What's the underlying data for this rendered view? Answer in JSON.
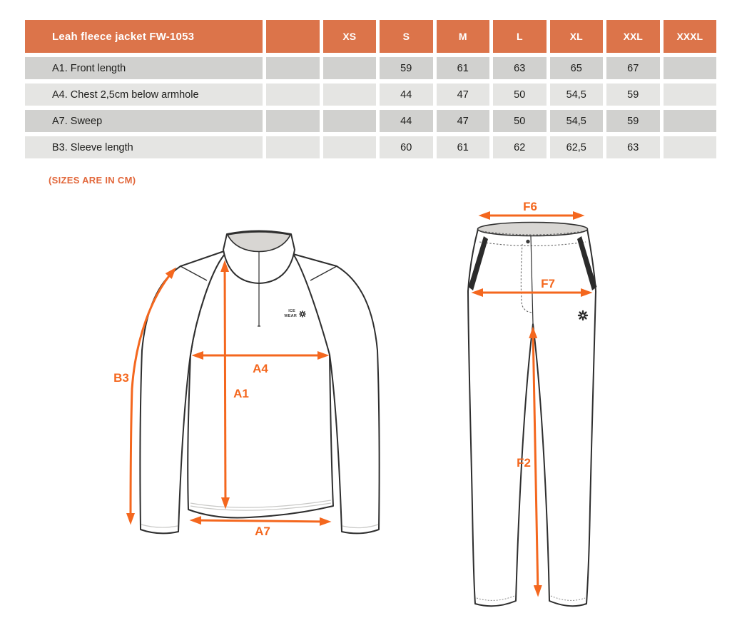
{
  "table": {
    "title": "Leah fleece jacket FW-1053",
    "size_columns": [
      "",
      "XS",
      "S",
      "M",
      "L",
      "XL",
      "XXL",
      "XXXL"
    ],
    "rows": [
      {
        "label": "A1. Front length",
        "values": [
          "",
          "",
          "59",
          "61",
          "63",
          "65",
          "67",
          ""
        ]
      },
      {
        "label": "A4. Chest 2,5cm below armhole",
        "values": [
          "",
          "",
          "44",
          "47",
          "50",
          "54,5",
          "59",
          ""
        ]
      },
      {
        "label": "A7. Sweep",
        "values": [
          "",
          "",
          "44",
          "47",
          "50",
          "54,5",
          "59",
          ""
        ]
      },
      {
        "label": "B3. Sleeve length",
        "values": [
          "",
          "",
          "60",
          "61",
          "62",
          "62,5",
          "63",
          ""
        ]
      }
    ]
  },
  "note": "(SIZES ARE IN CM)",
  "jacket_labels": {
    "b3": "B3",
    "a1": "A1",
    "a4": "A4",
    "a7": "A7"
  },
  "pants_labels": {
    "f6": "F6",
    "f7": "F7",
    "f2": "F2"
  },
  "logo": {
    "line1": "ICE",
    "line2": "WEAR",
    "snowflake_icon": "snowflake-icon"
  },
  "colors": {
    "header_bg": "#DC744A",
    "row_dark": "#D1D1CF",
    "row_light": "#E5E5E3",
    "header_text": "#FFFFFF",
    "body_text": "#1D1D1B",
    "note_text": "#E2683C",
    "arrow": "#F4671E",
    "outline": "#2E2E2E",
    "garment_gray": "#D8D6D3"
  }
}
